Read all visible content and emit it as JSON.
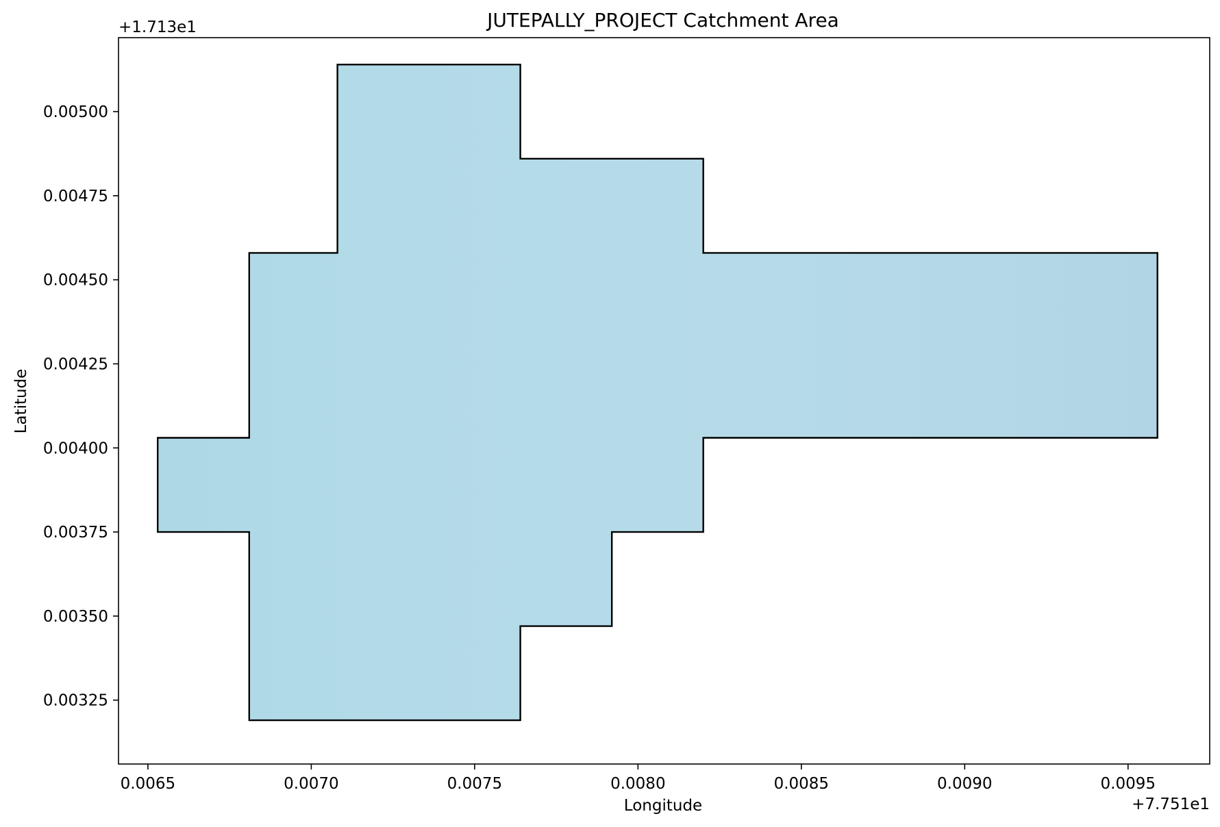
{
  "chart_data": {
    "type": "area",
    "title": "JUTEPALLY_PROJECT Catchment Area",
    "xlabel": "Longitude",
    "ylabel": "Latitude",
    "x_offset_label": "+7.751e1",
    "y_offset_label": "+1.713e1",
    "xlim": [
      0.00641,
      0.00975
    ],
    "ylim": [
      0.00306,
      0.00522
    ],
    "xticks": [
      0.0065,
      0.007,
      0.0075,
      0.008,
      0.0085,
      0.009,
      0.0095
    ],
    "xtick_labels": [
      "0.0065",
      "0.0070",
      "0.0075",
      "0.0080",
      "0.0085",
      "0.0090",
      "0.0095"
    ],
    "yticks": [
      0.00325,
      0.0035,
      0.00375,
      0.004,
      0.00425,
      0.0045,
      0.00475,
      0.005
    ],
    "ytick_labels": [
      "0.00325",
      "0.00350",
      "0.00375",
      "0.00400",
      "0.00425",
      "0.00450",
      "0.00475",
      "0.00500"
    ],
    "grid": false,
    "fill_color": "#add8e6",
    "edge_color": "#000000",
    "polygon": [
      {
        "x": 0.00708,
        "y": 0.00514
      },
      {
        "x": 0.00764,
        "y": 0.00514
      },
      {
        "x": 0.00764,
        "y": 0.00486
      },
      {
        "x": 0.0082,
        "y": 0.00486
      },
      {
        "x": 0.0082,
        "y": 0.00458
      },
      {
        "x": 0.00959,
        "y": 0.00458
      },
      {
        "x": 0.00959,
        "y": 0.00403
      },
      {
        "x": 0.0082,
        "y": 0.00403
      },
      {
        "x": 0.0082,
        "y": 0.00375
      },
      {
        "x": 0.00792,
        "y": 0.00375
      },
      {
        "x": 0.00792,
        "y": 0.00347
      },
      {
        "x": 0.00764,
        "y": 0.00347
      },
      {
        "x": 0.00764,
        "y": 0.00319
      },
      {
        "x": 0.00681,
        "y": 0.00319
      },
      {
        "x": 0.00681,
        "y": 0.00375
      },
      {
        "x": 0.00653,
        "y": 0.00375
      },
      {
        "x": 0.00653,
        "y": 0.00403
      },
      {
        "x": 0.00681,
        "y": 0.00403
      },
      {
        "x": 0.00681,
        "y": 0.00458
      },
      {
        "x": 0.00708,
        "y": 0.00458
      }
    ]
  }
}
